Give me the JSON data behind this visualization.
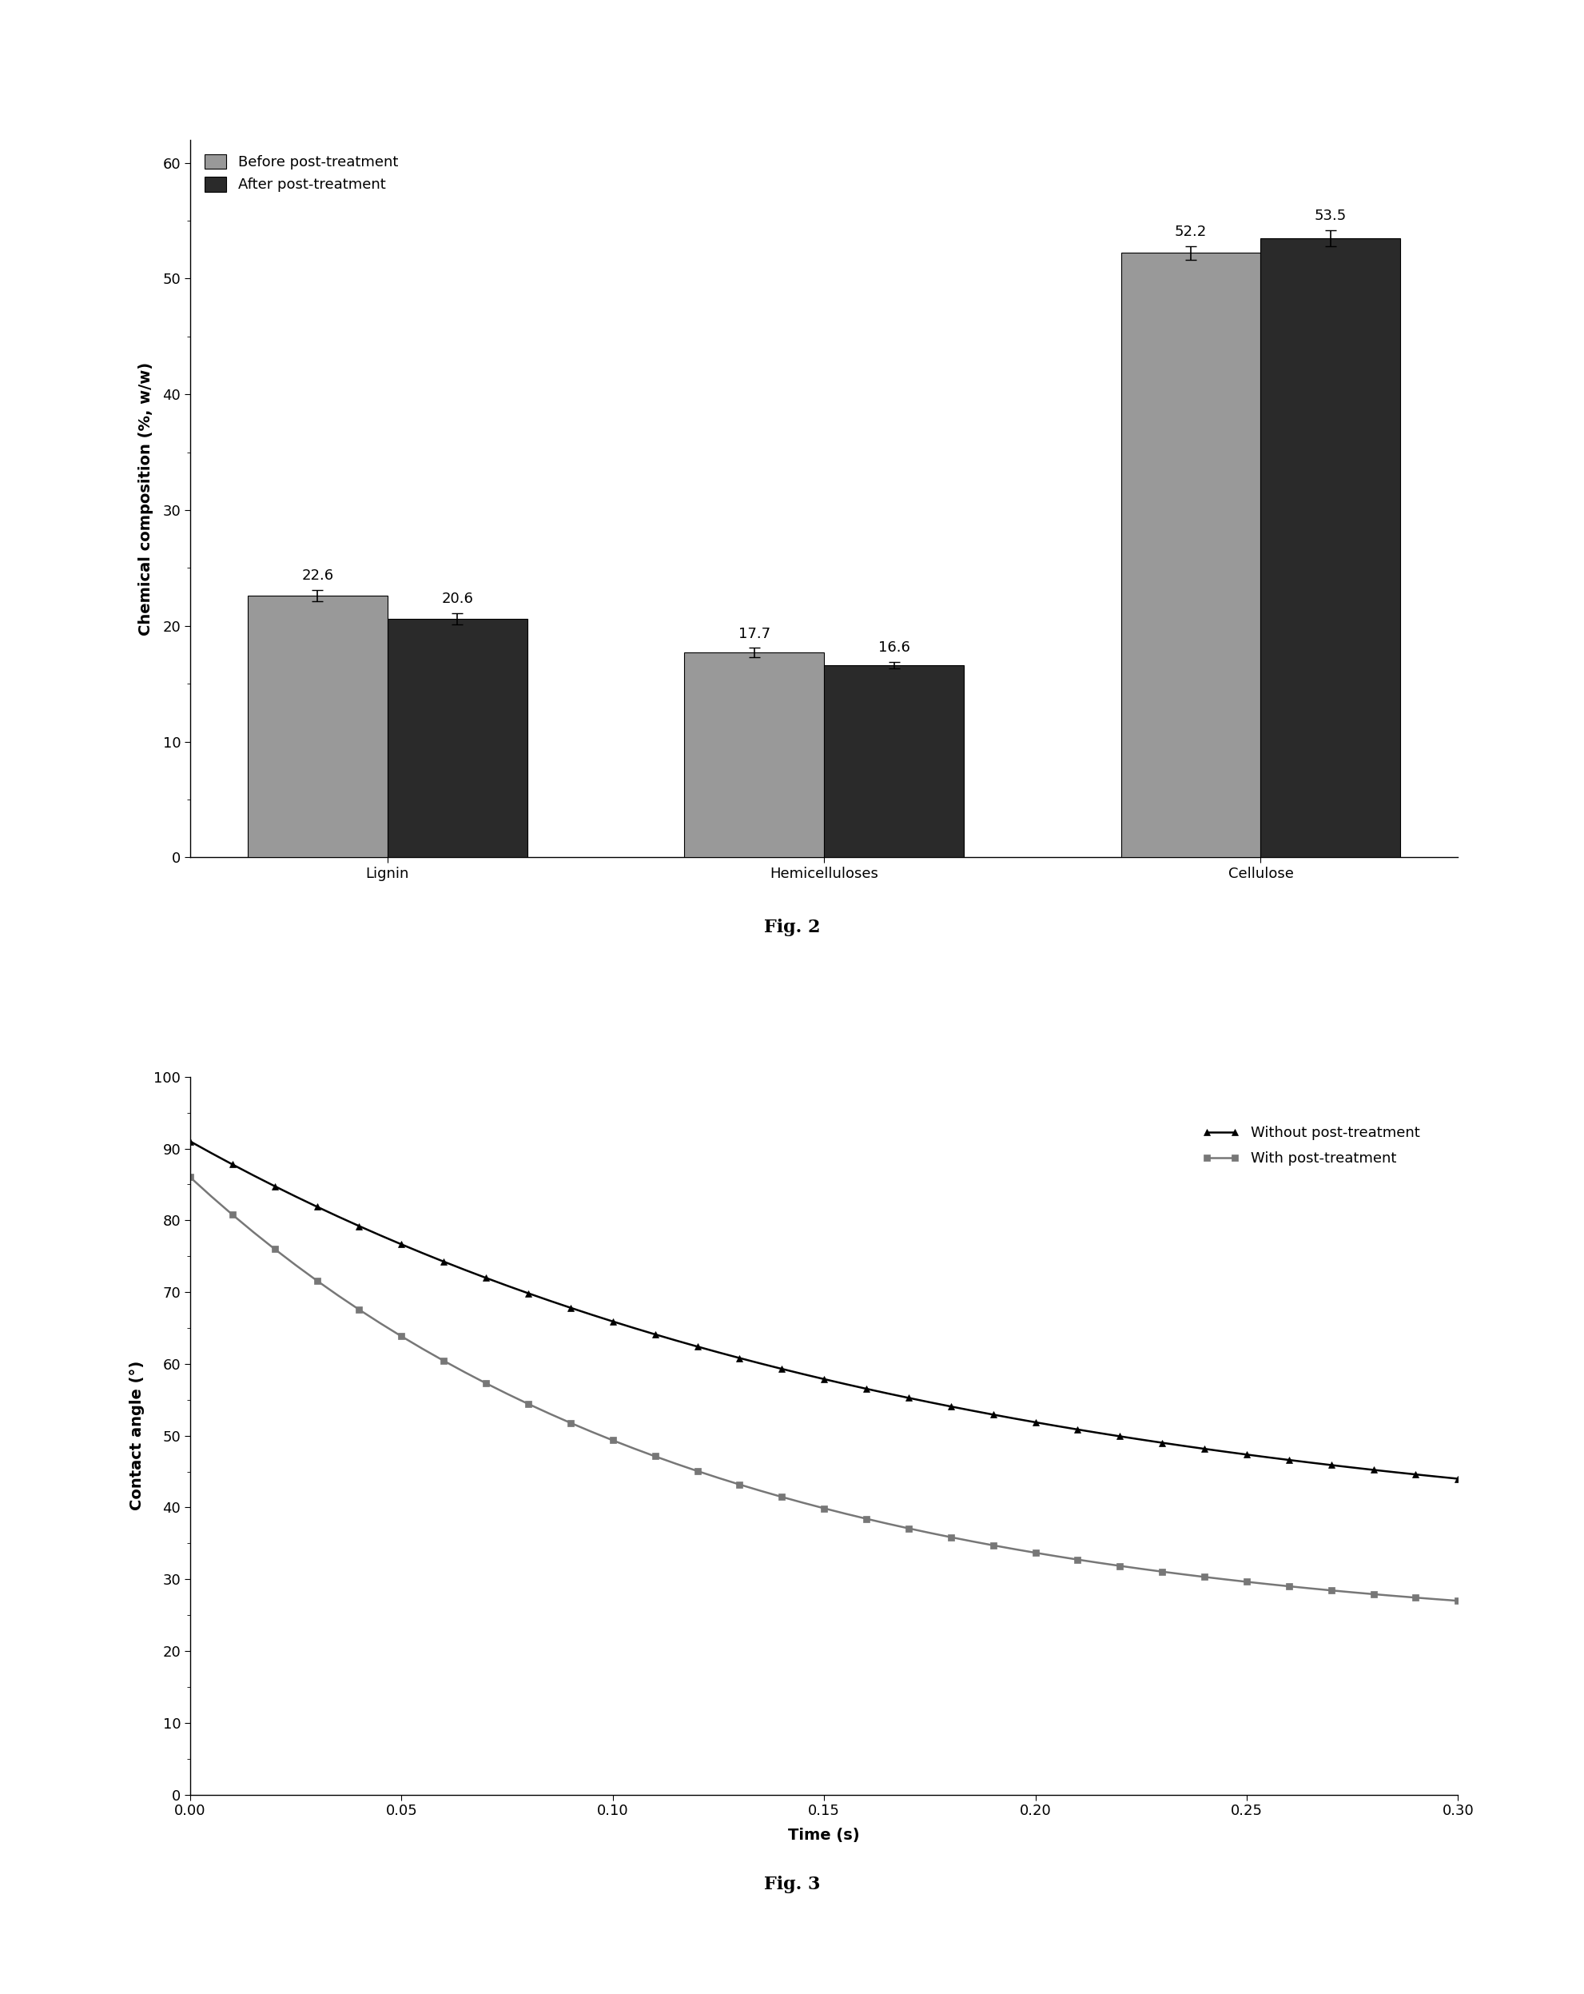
{
  "fig2": {
    "categories": [
      "Lignin",
      "Hemicelluloses",
      "Cellulose"
    ],
    "before": [
      22.6,
      17.7,
      52.2
    ],
    "after": [
      20.6,
      16.6,
      53.5
    ],
    "before_errors": [
      0.5,
      0.4,
      0.6
    ],
    "after_errors": [
      0.5,
      0.3,
      0.7
    ],
    "ylabel": "Chemical composition (%, w/w)",
    "ylim": [
      0,
      62
    ],
    "yticks": [
      0,
      10,
      20,
      30,
      40,
      50,
      60
    ],
    "color_before": "#999999",
    "color_after": "#2a2a2a",
    "legend_before": "Before post-treatment",
    "legend_after": "After post-treatment",
    "fig_label": "Fig. 2"
  },
  "fig3": {
    "xlabel": "Time (s)",
    "ylabel": "Contact angle (°)",
    "xlim": [
      0.0,
      0.3
    ],
    "ylim": [
      0,
      100
    ],
    "yticks": [
      0,
      10,
      20,
      30,
      40,
      50,
      60,
      70,
      80,
      90,
      100
    ],
    "xticks": [
      0.0,
      0.05,
      0.1,
      0.15,
      0.2,
      0.25,
      0.3
    ],
    "legend_without": "Without post-treatment",
    "legend_with": "With post-treatment",
    "color_without": "#000000",
    "color_with": "#777777",
    "fig_label": "Fig. 3",
    "k1": 5.8,
    "A1": 57,
    "B1": 34,
    "k2": 8.5,
    "A2": 64,
    "B2": 22,
    "n_points": 61
  }
}
